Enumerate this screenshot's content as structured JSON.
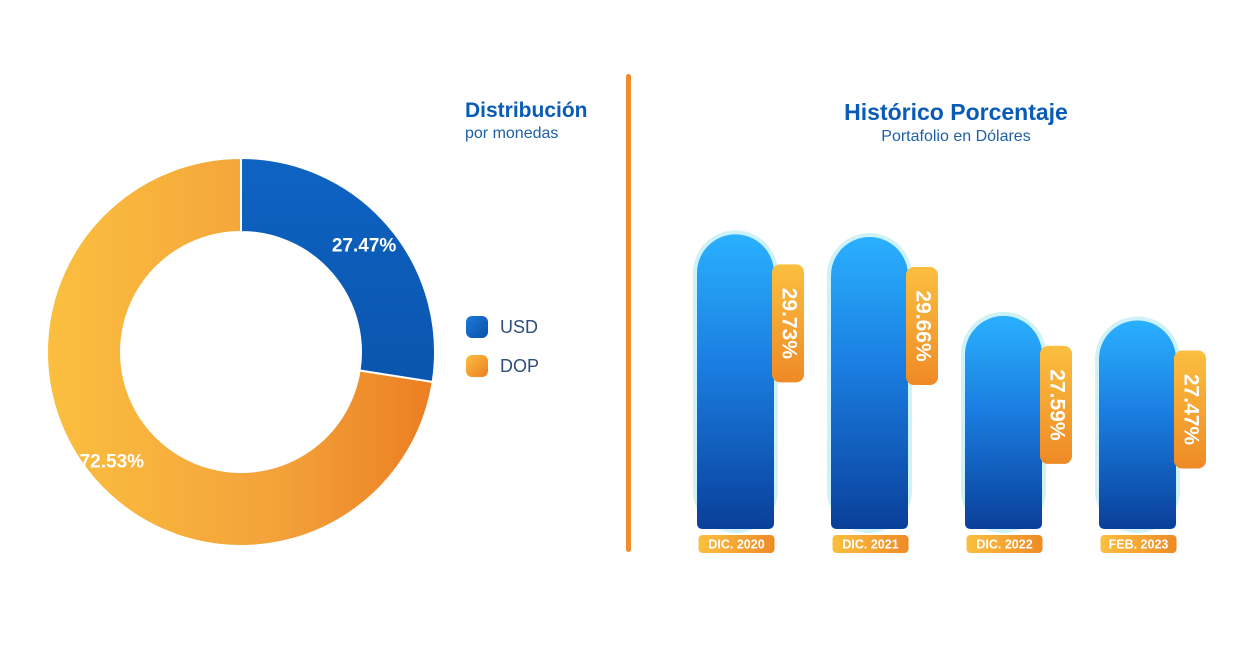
{
  "colors": {
    "usd": "#1466c6",
    "dop": "#f3a23a",
    "title": "#0a5bb5",
    "divider": "#f08c2a"
  },
  "charts": {
    "distribution": {
      "title": "Distribución",
      "subtitle": "por monedas"
    },
    "history": {
      "title": "Histórico Porcentaje",
      "subtitle": "Portafolio en Dólares"
    }
  },
  "chart_data": [
    {
      "type": "pie",
      "title": "Distribución",
      "subtitle": "por monedas",
      "donut": true,
      "legend_position": "right",
      "slices": [
        {
          "label": "USD",
          "value": 27.47,
          "display": "27.47%"
        },
        {
          "label": "DOP",
          "value": 72.53,
          "display": "72.53%"
        }
      ]
    },
    {
      "type": "bar",
      "title": "Histórico Porcentaje",
      "subtitle": "Portafolio en Dólares",
      "categories": [
        "DIC. 2020",
        "DIC. 2021",
        "DIC. 2022",
        "FEB. 2023"
      ],
      "values": [
        29.73,
        29.66,
        27.59,
        27.47
      ],
      "labels": [
        "29.73%",
        "29.66%",
        "27.59%",
        "27.47%"
      ],
      "ylim": [
        22,
        30.5
      ],
      "grid": false
    }
  ]
}
